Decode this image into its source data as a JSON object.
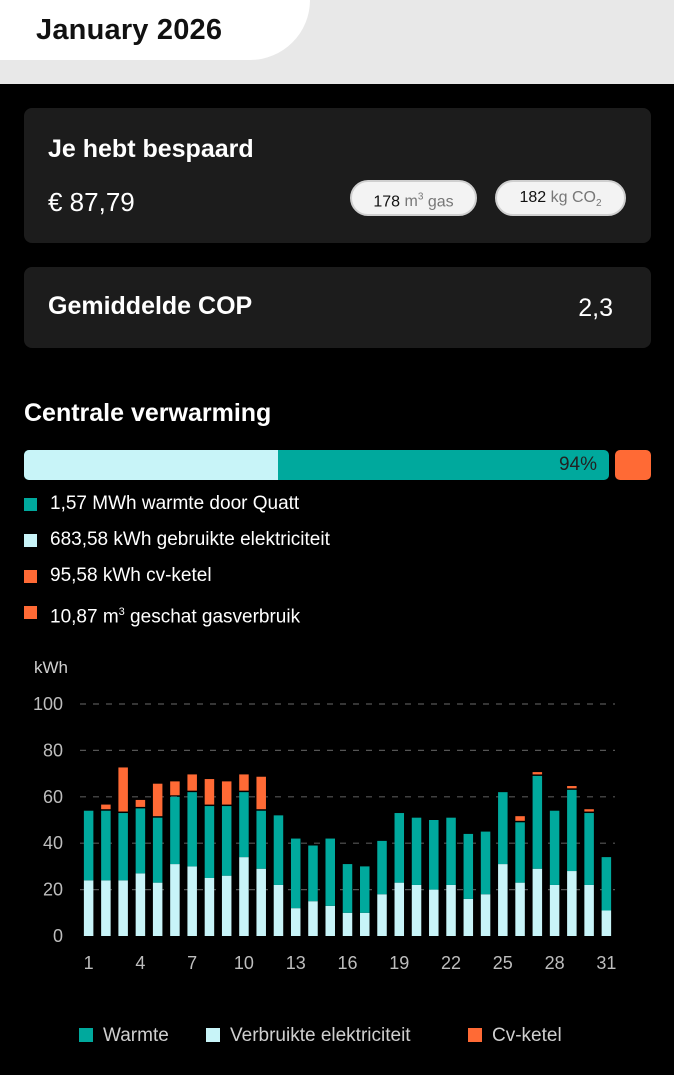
{
  "header": {
    "title": "January 2026"
  },
  "savings": {
    "title": "Je hebt bespaard",
    "amount": "€ 87,79",
    "gas": {
      "value": "178",
      "unit": "m",
      "sup": "3",
      "label": "gas"
    },
    "co2": {
      "value": "182",
      "unit": "kg",
      "label": "CO",
      "sub": "2"
    }
  },
  "cop": {
    "title": "Gemiddelde COP",
    "value": "2,3"
  },
  "heating": {
    "title": "Centrale verwarming",
    "elec_fraction": 0.435,
    "percentage": "94%",
    "legend": [
      {
        "text": "1,57 MWh warmte door Quatt",
        "color": "#00a99d"
      },
      {
        "text": "683,58 kWh gebruikte elektriciteit",
        "color": "#c8f4f8"
      },
      {
        "text": "95,58 kWh cv-ketel",
        "color": "#ff6a35"
      },
      {
        "pre": "10,87 m",
        "sup": "3",
        "post": " geschat gasverbruik",
        "color": "#ff6a35"
      }
    ]
  },
  "chart_data": {
    "type": "bar",
    "ylabel": "kWh",
    "ylim": [
      0,
      100
    ],
    "yticks": [
      0,
      20,
      40,
      60,
      80,
      100
    ],
    "x": [
      1,
      2,
      3,
      4,
      5,
      6,
      7,
      8,
      9,
      10,
      11,
      12,
      13,
      14,
      15,
      16,
      17,
      18,
      19,
      20,
      21,
      22,
      23,
      24,
      25,
      26,
      27,
      28,
      29,
      30,
      31
    ],
    "xticks": [
      1,
      4,
      7,
      10,
      13,
      16,
      19,
      22,
      25,
      28,
      31
    ],
    "stacked": true,
    "series": [
      {
        "name": "Verbruikte elektriciteit",
        "color": "#c8f4f8",
        "values": [
          24,
          24,
          24,
          27,
          23,
          31,
          30,
          25,
          26,
          34,
          29,
          22,
          12,
          15,
          13,
          10,
          10,
          18,
          23,
          22,
          20,
          22,
          16,
          18,
          31,
          23,
          29,
          22,
          28,
          22,
          11
        ]
      },
      {
        "name": "Warmte",
        "color": "#00a99d",
        "values": [
          30,
          30,
          29,
          28,
          28,
          29,
          32,
          31,
          30,
          28,
          25,
          30,
          30,
          24,
          29,
          21,
          20,
          23,
          30,
          29,
          30,
          29,
          28,
          27,
          31,
          26,
          40,
          32,
          35,
          31,
          23
        ]
      },
      {
        "name": "Cv-ketel",
        "color": "#ff6a35",
        "values": [
          0,
          2,
          19,
          3,
          14,
          6,
          7,
          11,
          10,
          7,
          14,
          0,
          0,
          0,
          0,
          0,
          0,
          0,
          0,
          0,
          0,
          0,
          0,
          0,
          0,
          2,
          1,
          0,
          1,
          1,
          0
        ]
      }
    ],
    "legend": [
      "Warmte",
      "Verbruikte elektriciteit",
      "Cv-ketel"
    ]
  }
}
